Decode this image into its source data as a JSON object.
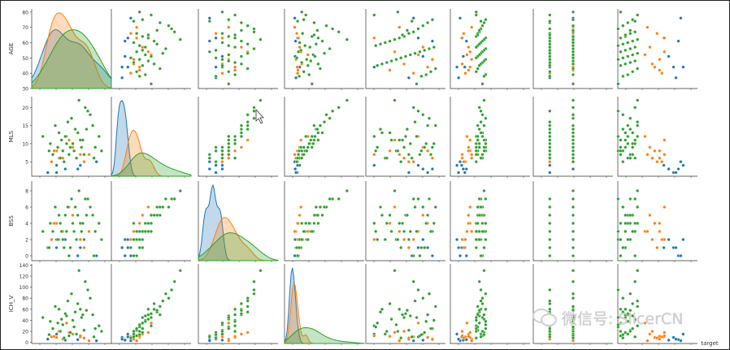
{
  "chart_data": {
    "type": "scatter",
    "variables": [
      "AGE",
      "MLS",
      "BSS",
      "ICH_V"
    ],
    "hue_label": "target",
    "hue_colors": [
      "#1f77b4",
      "#ff7f0e",
      "#2ca02c"
    ],
    "y_ticks": {
      "AGE": [
        30,
        40,
        50,
        60,
        70,
        80
      ],
      "MLS": [
        5,
        10,
        15,
        20
      ],
      "BSS": [
        0,
        2,
        4,
        6,
        8
      ],
      "ICH_V": [
        0,
        20,
        40,
        60,
        80,
        100,
        120,
        140
      ]
    },
    "y_ranges": {
      "AGE": [
        30,
        82
      ],
      "MLS": [
        1,
        23
      ],
      "BSS": [
        -0.6,
        9.2
      ],
      "ICH_V": [
        -2,
        142
      ]
    },
    "x_ranges": {
      "AGE": [
        28,
        84
      ],
      "MLS": [
        0,
        24
      ],
      "BSS": [
        -1,
        10
      ],
      "ICH_V": [
        -10,
        160
      ],
      "extra": [
        0,
        4
      ],
      "target": [
        -0.5,
        2.5
      ]
    },
    "extra_col_x_by_target": [
      0.05,
      0.2,
      0.6
    ],
    "target_col_x": [
      0,
      1
    ],
    "last_col_x_by_target": [
      2.25,
      1.55,
      0.55
    ],
    "groups": [
      {
        "target": 0,
        "color": "#1f77b4",
        "points": [
          {
            "AGE": 44,
            "MLS": 4,
            "BSS": 2,
            "ICH_V": 15
          },
          {
            "AGE": 61,
            "MLS": 3,
            "BSS": 0,
            "ICH_V": 5
          },
          {
            "AGE": 44,
            "MLS": 2,
            "BSS": 1,
            "ICH_V": 9
          },
          {
            "AGE": 51,
            "MLS": 3,
            "BSS": 2,
            "ICH_V": 4
          },
          {
            "AGE": 63,
            "MLS": 4,
            "BSS": 1,
            "ICH_V": 10
          },
          {
            "AGE": 76,
            "MLS": 5,
            "BSS": 0,
            "ICH_V": 3
          },
          {
            "AGE": 37,
            "MLS": 2,
            "BSS": 1,
            "ICH_V": 6
          }
        ]
      },
      {
        "target": 1,
        "color": "#ff7f0e",
        "points": [
          {
            "AGE": 63,
            "MLS": 7,
            "BSS": 2,
            "ICH_V": 12
          },
          {
            "AGE": 49,
            "MLS": 6,
            "BSS": 3,
            "ICH_V": 6
          },
          {
            "AGE": 44,
            "MLS": 8,
            "BSS": 4,
            "ICH_V": 9
          },
          {
            "AGE": 57,
            "MLS": 9,
            "BSS": 5,
            "ICH_V": 15
          },
          {
            "AGE": 52,
            "MLS": 12,
            "BSS": 3,
            "ICH_V": 35
          },
          {
            "AGE": 40,
            "MLS": 5,
            "BSS": 2,
            "ICH_V": 10
          },
          {
            "AGE": 66,
            "MLS": 5,
            "BSS": 1,
            "ICH_V": 8
          },
          {
            "AGE": 46,
            "MLS": 6,
            "BSS": 2,
            "ICH_V": 20
          },
          {
            "AGE": 70,
            "MLS": 7,
            "BSS": 3,
            "ICH_V": 3
          },
          {
            "AGE": 54,
            "MLS": 11,
            "BSS": 6,
            "ICH_V": 18
          },
          {
            "AGE": 42,
            "MLS": 8,
            "BSS": 4,
            "ICH_V": 11
          }
        ]
      },
      {
        "target": 2,
        "color": "#2ca02c",
        "points": [
          {
            "AGE": 78,
            "MLS": 12,
            "BSS": 4,
            "ICH_V": 30
          },
          {
            "AGE": 75,
            "MLS": 9,
            "BSS": 3,
            "ICH_V": 25
          },
          {
            "AGE": 73,
            "MLS": 15,
            "BSS": 5,
            "ICH_V": 50
          },
          {
            "AGE": 71,
            "MLS": 18,
            "BSS": 6,
            "ICH_V": 80
          },
          {
            "AGE": 69,
            "MLS": 19,
            "BSS": 7,
            "ICH_V": 95
          },
          {
            "AGE": 67,
            "MLS": 20,
            "BSS": 7,
            "ICH_V": 110
          },
          {
            "AGE": 66,
            "MLS": 7,
            "BSS": 2,
            "ICH_V": 22
          },
          {
            "AGE": 64,
            "MLS": 9,
            "BSS": 3,
            "ICH_V": 45
          },
          {
            "AGE": 63,
            "MLS": 11,
            "BSS": 4,
            "ICH_V": 60
          },
          {
            "AGE": 62,
            "MLS": 22,
            "BSS": 8,
            "ICH_V": 130
          },
          {
            "AGE": 61,
            "MLS": 13,
            "BSS": 5,
            "ICH_V": 70
          },
          {
            "AGE": 60,
            "MLS": 6,
            "BSS": 2,
            "ICH_V": 15
          },
          {
            "AGE": 59,
            "MLS": 14,
            "BSS": 6,
            "ICH_V": 55
          },
          {
            "AGE": 58,
            "MLS": 8,
            "BSS": 3,
            "ICH_V": 28
          },
          {
            "AGE": 57,
            "MLS": 10,
            "BSS": 4,
            "ICH_V": 40
          },
          {
            "AGE": 56,
            "MLS": 17,
            "BSS": 7,
            "ICH_V": 88
          },
          {
            "AGE": 55,
            "MLS": 9,
            "BSS": 1,
            "ICH_V": 18
          },
          {
            "AGE": 54,
            "MLS": 7,
            "BSS": 0,
            "ICH_V": 12
          },
          {
            "AGE": 53,
            "MLS": 16,
            "BSS": 6,
            "ICH_V": 75
          },
          {
            "AGE": 52,
            "MLS": 10,
            "BSS": 3,
            "ICH_V": 48
          },
          {
            "AGE": 51,
            "MLS": 12,
            "BSS": 5,
            "ICH_V": 52
          },
          {
            "AGE": 50,
            "MLS": 5,
            "BSS": 1,
            "ICH_V": 8
          },
          {
            "AGE": 49,
            "MLS": 8,
            "BSS": 2,
            "ICH_V": 32
          },
          {
            "AGE": 48,
            "MLS": 11,
            "BSS": 3,
            "ICH_V": 42
          },
          {
            "AGE": 47,
            "MLS": 6,
            "BSS": 4,
            "ICH_V": 20
          },
          {
            "AGE": 46,
            "MLS": 13,
            "BSS": 5,
            "ICH_V": 60
          },
          {
            "AGE": 45,
            "MLS": 9,
            "BSS": 2,
            "ICH_V": 35
          },
          {
            "AGE": 43,
            "MLS": 15,
            "BSS": 6,
            "ICH_V": 65
          },
          {
            "AGE": 41,
            "MLS": 7,
            "BSS": 3,
            "ICH_V": 25
          },
          {
            "AGE": 39,
            "MLS": 10,
            "BSS": 4,
            "ICH_V": 38
          },
          {
            "AGE": 38,
            "MLS": 8,
            "BSS": 1,
            "ICH_V": 14
          },
          {
            "AGE": 33,
            "MLS": 12,
            "BSS": 3,
            "ICH_V": 45
          },
          {
            "AGE": 74,
            "MLS": 6,
            "BSS": 0,
            "ICH_V": 10
          },
          {
            "AGE": 68,
            "MLS": 14,
            "BSS": 5,
            "ICH_V": 58
          },
          {
            "AGE": 65,
            "MLS": 11,
            "BSS": 4,
            "ICH_V": 50
          },
          {
            "AGE": 80,
            "MLS": 8,
            "BSS": 2,
            "ICH_V": 20
          }
        ]
      }
    ]
  },
  "watermark": {
    "text": "微信号: SlicerCN",
    "icon": "wechat-logo"
  }
}
